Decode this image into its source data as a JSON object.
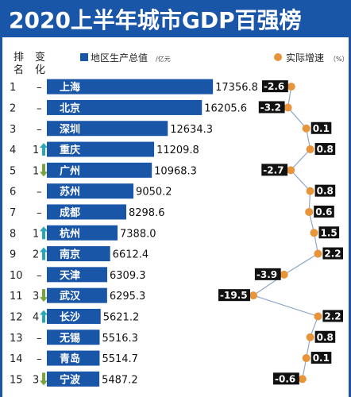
{
  "title": "2020上半年城市GDP百强榜",
  "headers": {
    "rank": "排名",
    "change": "变化",
    "gdp_legend": "地区生产总值",
    "gdp_unit": "/亿元",
    "growth_legend": "实际增速",
    "growth_unit": "（%）"
  },
  "colors": {
    "brand": "#1a56a8",
    "bar": "#1a56a8",
    "dot": "#e8943a",
    "line": "#8fa8c8",
    "label_bg": "#111111",
    "up_arrow": "#2aa7b3",
    "down_arrow": "#7aa33a"
  },
  "chart_data": {
    "type": "bar",
    "title": "2020上半年城市GDP百强榜",
    "categories": [
      "上海",
      "北京",
      "深圳",
      "重庆",
      "广州",
      "苏州",
      "成都",
      "杭州",
      "南京",
      "天津",
      "武汉",
      "长沙",
      "无锡",
      "青岛",
      "宁波"
    ],
    "series": [
      {
        "name": "地区生产总值",
        "type": "bar",
        "values": [
          17356.8,
          16205.6,
          12634.3,
          11209.8,
          10968.3,
          9050.2,
          8298.6,
          7388.0,
          6612.4,
          6309.3,
          6295.3,
          5621.2,
          5516.3,
          5514.7,
          5487.2
        ],
        "labels": [
          "17356.8",
          "16205.6",
          "12634.3",
          "11209.8",
          "10968.3",
          "9050.2",
          "8298.6",
          "7388.0",
          "6612.4",
          "6309.3",
          "6295.3",
          "5621.2",
          "5516.3",
          "5514.7",
          "5487.2"
        ]
      },
      {
        "name": "实际增速",
        "type": "line",
        "values": [
          -2.6,
          -3.2,
          0.1,
          0.8,
          -2.7,
          0.8,
          0.6,
          1.5,
          2.2,
          -3.9,
          -19.5,
          2.2,
          0.8,
          0.1,
          -0.6
        ],
        "labels": [
          "-2.6",
          "-3.2",
          "0.1",
          "0.8",
          "-2.7",
          "0.8",
          "0.6",
          "1.5",
          "2.2",
          "-3.9",
          "-19.5",
          "2.2",
          "0.8",
          "0.1",
          "-0.6"
        ]
      }
    ],
    "ranks": [
      "1",
      "2",
      "3",
      "4",
      "5",
      "6",
      "7",
      "8",
      "9",
      "10",
      "11",
      "12",
      "13",
      "14",
      "15"
    ],
    "changes": [
      {
        "text": "–",
        "dir": "none"
      },
      {
        "text": "–",
        "dir": "none"
      },
      {
        "text": "–",
        "dir": "none"
      },
      {
        "text": "1",
        "dir": "up"
      },
      {
        "text": "1",
        "dir": "down"
      },
      {
        "text": "–",
        "dir": "none"
      },
      {
        "text": "–",
        "dir": "none"
      },
      {
        "text": "1",
        "dir": "up"
      },
      {
        "text": "2",
        "dir": "up"
      },
      {
        "text": "–",
        "dir": "none"
      },
      {
        "text": "3",
        "dir": "down"
      },
      {
        "text": "4",
        "dir": "up"
      },
      {
        "text": "–",
        "dir": "none"
      },
      {
        "text": "–",
        "dir": "none"
      },
      {
        "text": "3",
        "dir": "down"
      }
    ],
    "xlabel": "",
    "ylabel": "",
    "legend": "top"
  }
}
